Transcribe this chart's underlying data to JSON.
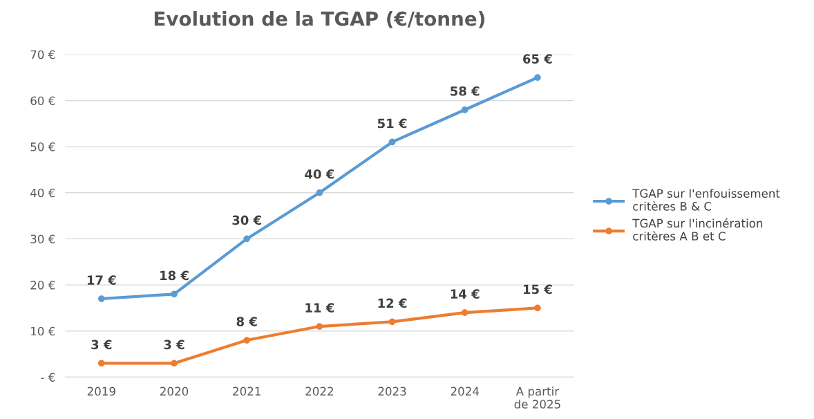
{
  "chart_data": {
    "type": "line",
    "title": "Evolution de la TGAP (€/tonne)",
    "categories": [
      "2019",
      "2020",
      "2021",
      "2022",
      "2023",
      "2024",
      "A partir\nde 2025"
    ],
    "series": [
      {
        "name": "TGAP sur l'enfouissement\ncritères B & C",
        "color": "#5b9bd5",
        "values": [
          17,
          18,
          30,
          40,
          51,
          58,
          65
        ],
        "value_labels": [
          "17 €",
          "18 €",
          "30 €",
          "40 €",
          "51 €",
          "58 €",
          "65 €"
        ]
      },
      {
        "name": "TGAP sur l'incinération\ncritères A B et C",
        "color": "#ed7d31",
        "values": [
          3,
          3,
          8,
          11,
          12,
          14,
          15
        ],
        "value_labels": [
          "3 €",
          "3 €",
          "8 €",
          "11 €",
          "12 €",
          "14 €",
          "15 €"
        ]
      }
    ],
    "ylim": [
      0,
      70
    ],
    "yticks": [
      {
        "value": 0,
        "label": "- €"
      },
      {
        "value": 10,
        "label": "10 €"
      },
      {
        "value": 20,
        "label": "20 €"
      },
      {
        "value": 30,
        "label": "30 €"
      },
      {
        "value": 40,
        "label": "40 €"
      },
      {
        "value": 50,
        "label": "50 €"
      },
      {
        "value": 60,
        "label": "60 €"
      },
      {
        "value": 70,
        "label": "70 €"
      }
    ],
    "grid": "y",
    "legend": "right",
    "marker": "circle",
    "line_style": "solid"
  }
}
